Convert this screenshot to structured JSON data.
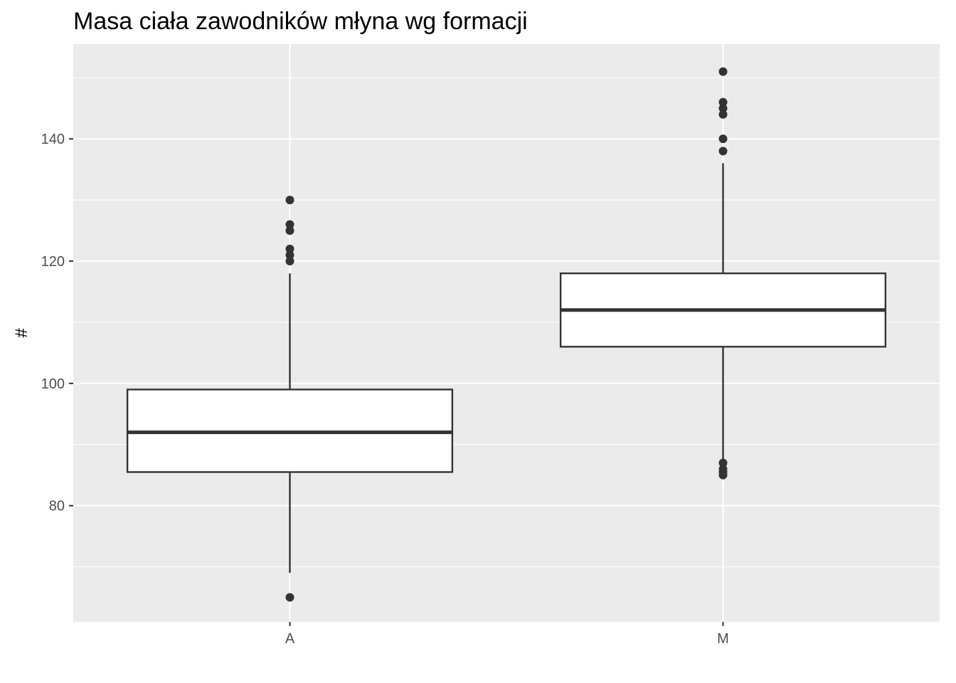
{
  "chart_data": {
    "type": "boxplot",
    "title": "Masa ciała zawodników młyna wg formacji",
    "xlabel": "",
    "ylabel": "#",
    "ylim": [
      61,
      155.5
    ],
    "y_ticks": [
      80,
      100,
      120,
      140
    ],
    "grid": true,
    "background": "#ebebeb",
    "categories": [
      "A",
      "M"
    ],
    "boxes": [
      {
        "category": "A",
        "whisker_low": 69,
        "q1": 85.5,
        "median": 92,
        "q3": 99,
        "whisker_high": 118,
        "outliers": [
          65,
          120,
          121,
          122,
          125,
          126,
          130
        ]
      },
      {
        "category": "M",
        "whisker_low": 87.5,
        "q1": 106,
        "median": 112,
        "q3": 118,
        "whisker_high": 136,
        "outliers": [
          85,
          85.5,
          86,
          87,
          138,
          140,
          144,
          145,
          146,
          151
        ]
      }
    ]
  }
}
